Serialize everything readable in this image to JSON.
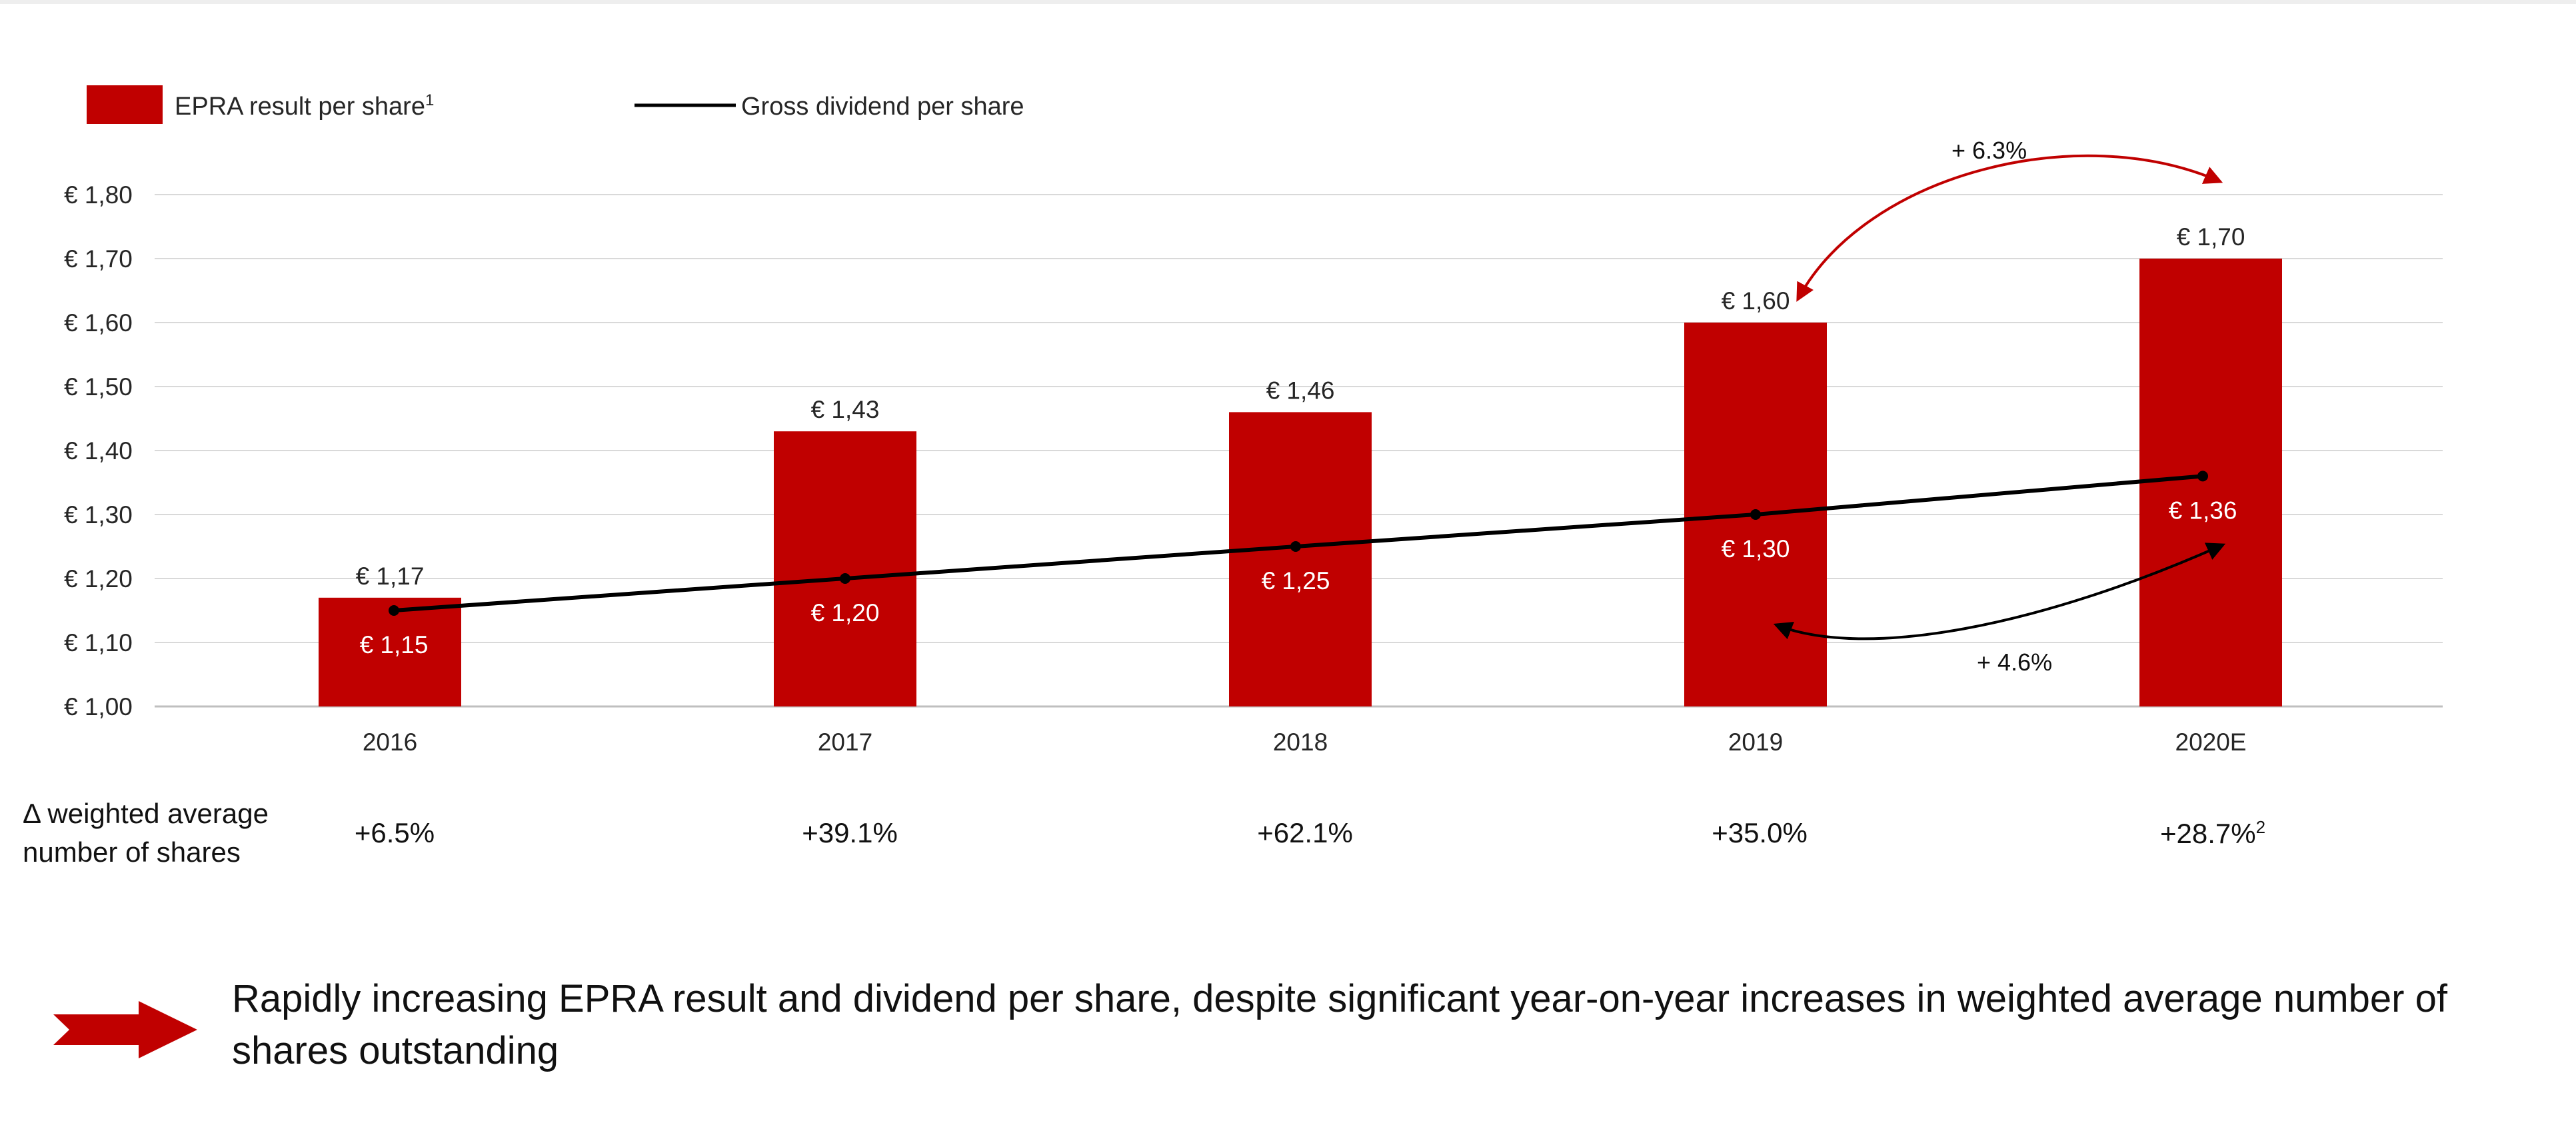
{
  "chart_data": {
    "type": "bar",
    "categories": [
      "2016",
      "2017",
      "2018",
      "2019",
      "2020E"
    ],
    "series": [
      {
        "name": "EPRA result per share",
        "kind": "bar",
        "color": "#c00000",
        "values": [
          1.17,
          1.43,
          1.46,
          1.6,
          1.7
        ],
        "labels": [
          "€ 1,17",
          "€ 1,43",
          "€ 1,46",
          "€ 1,60",
          "€ 1,70"
        ]
      },
      {
        "name": "Gross dividend per share",
        "kind": "line",
        "color": "#000000",
        "values": [
          1.15,
          1.2,
          1.25,
          1.3,
          1.36
        ],
        "labels": [
          "€ 1,15",
          "€ 1,20",
          "€ 1,25",
          "€ 1,30",
          "€ 1,36"
        ]
      }
    ],
    "ylim": [
      1.0,
      1.8
    ],
    "yticks": [
      1.0,
      1.1,
      1.2,
      1.3,
      1.4,
      1.5,
      1.6,
      1.7,
      1.8
    ],
    "ytick_labels": [
      "€ 1,00",
      "€ 1,10",
      "€ 1,20",
      "€ 1,30",
      "€ 1,40",
      "€ 1,50",
      "€ 1,60",
      "€ 1,70",
      "€ 1,80"
    ],
    "grid": true,
    "legend": {
      "position": "top-left",
      "bar_label": "EPRA result per share",
      "bar_sup": "1",
      "line_label": "Gross dividend per share"
    },
    "annotations": [
      {
        "text": "+ 6.3%",
        "series": "EPRA result per share",
        "from": "2019",
        "to": "2020E",
        "color": "#c00000"
      },
      {
        "text": "+ 4.6%",
        "series": "Gross dividend per share",
        "from": "2019",
        "to": "2020E",
        "color": "#000000"
      }
    ]
  },
  "growth": {
    "title": "Δ weighted average number of shares",
    "values": [
      "+6.5%",
      "+39.1%",
      "+62.1%",
      "+35.0%",
      "+28.7%"
    ],
    "last_sup": "2"
  },
  "conclusion": {
    "icon": "red-arrow-right-icon",
    "text": "Rapidly increasing EPRA result and dividend per share, despite significant year-on-year increases in weighted average number of shares outstanding"
  }
}
